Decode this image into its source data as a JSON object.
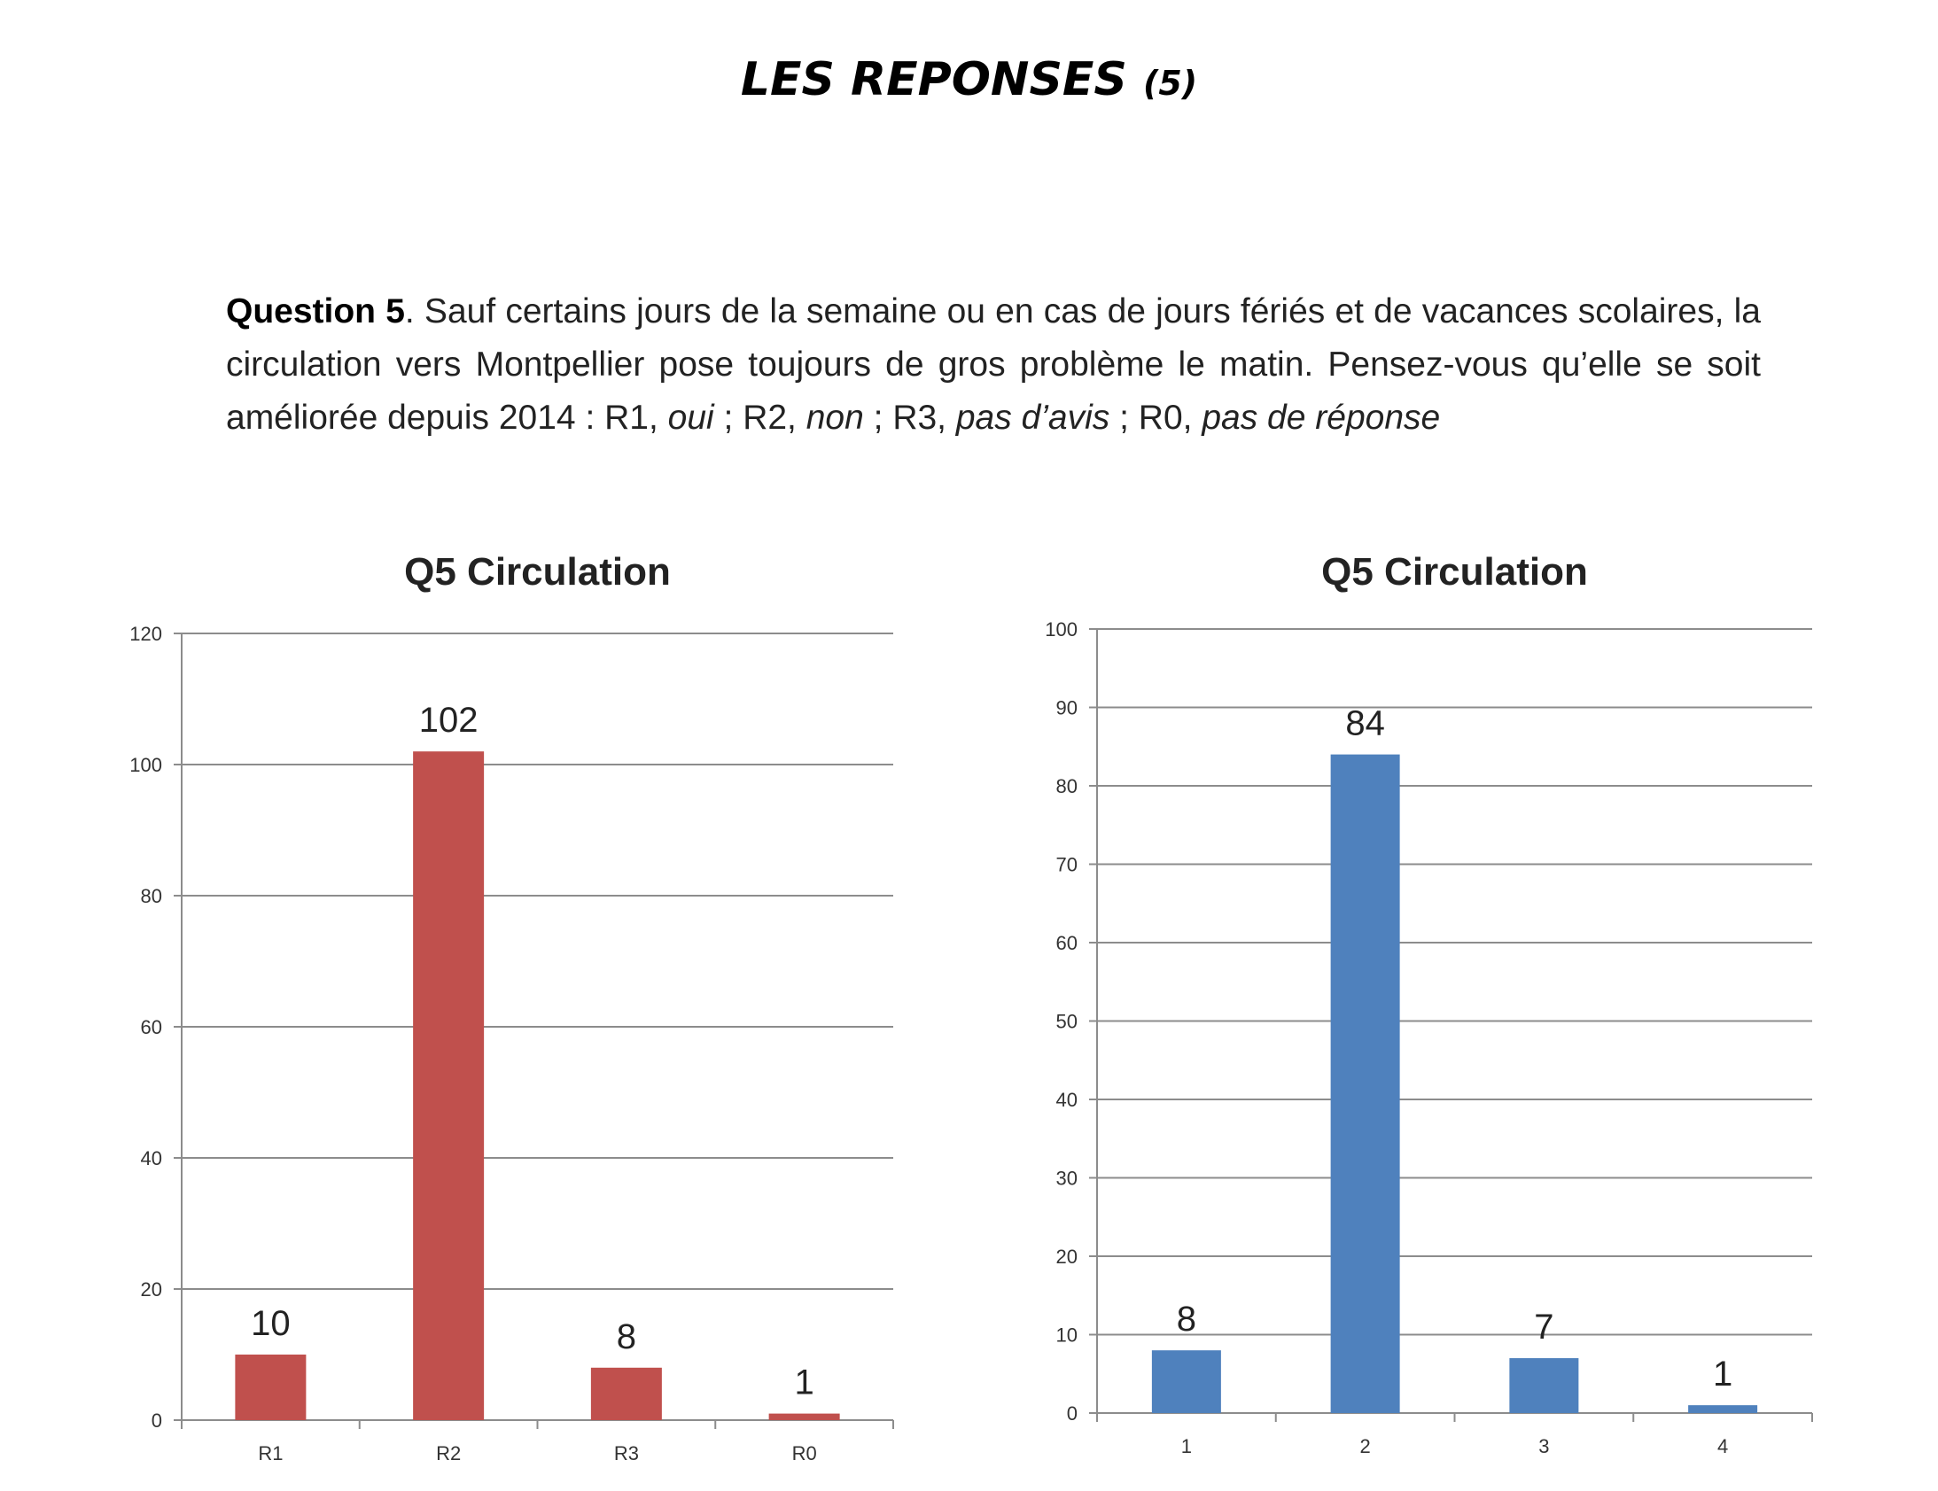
{
  "title": {
    "main": "LES REPONSES",
    "number": "(5)"
  },
  "question": {
    "label": "Question 5",
    "text": ". Sauf certains jours de la semaine ou en cas de jours fériés et de vacances scolaires, la circulation vers Montpellier pose toujours de gros problème le matin. Pensez-vous qu’elle se soit améliorée depuis 2014 : R1, ",
    "r1": "oui",
    "sep1": " ; R2, ",
    "r2": "non",
    "sep2": " ; R3, ",
    "r3": "pas d’avis",
    "sep3": " ; R0, ",
    "r0": "pas de réponse"
  },
  "chart_data": [
    {
      "type": "bar",
      "title": "Q5 Circulation",
      "categories": [
        "R1",
        "R2",
        "R3",
        "R0"
      ],
      "values": [
        10,
        102,
        8,
        1
      ],
      "ylim": [
        0,
        120
      ],
      "yticks": [
        0,
        20,
        40,
        60,
        80,
        100,
        120
      ],
      "grid": true,
      "color": "#c0504d",
      "data_labels": true
    },
    {
      "type": "bar",
      "title": "Q5 Circulation",
      "categories": [
        "1",
        "2",
        "3",
        "4"
      ],
      "values": [
        8,
        84,
        7,
        1
      ],
      "ylim": [
        0,
        100
      ],
      "yticks": [
        0,
        10,
        20,
        30,
        40,
        50,
        60,
        70,
        80,
        90,
        100
      ],
      "grid": true,
      "color": "#4f81bd",
      "data_labels": true
    }
  ]
}
